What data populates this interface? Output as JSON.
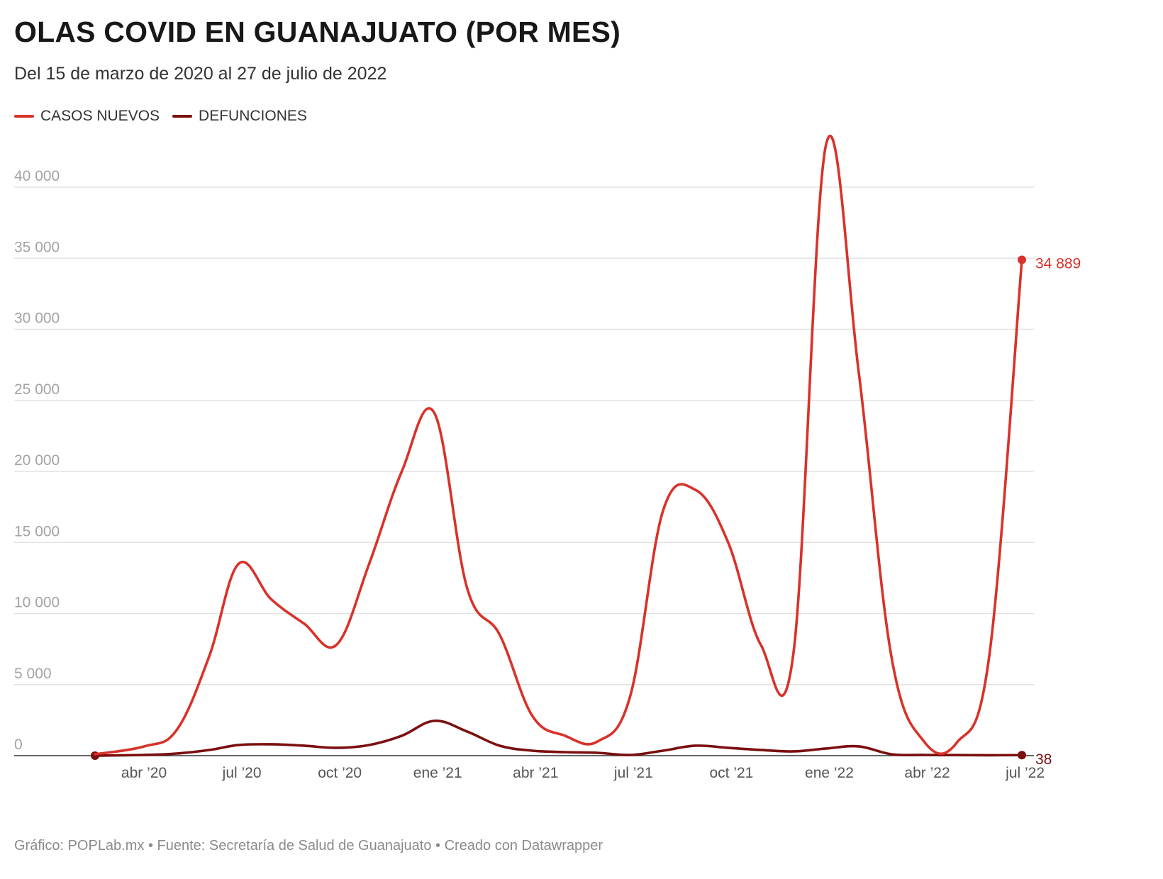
{
  "header": {
    "title": "OLAS COVID EN GUANAJUATO (POR MES)",
    "subtitle": "Del 15 de marzo de 2020 al 27 de julio de 2022"
  },
  "legend": {
    "items": [
      {
        "label": "CASOS NUEVOS",
        "color": "#d8322a"
      },
      {
        "label": "DEFUNCIONES",
        "color": "#7b0f0f"
      }
    ]
  },
  "footer": {
    "credit": "Gráfico: POPLab.mx • Fuente: Secretaría de Salud de Guanajuato • Creado con Datawrapper"
  },
  "chart_data": {
    "type": "line",
    "title": "OLAS COVID EN GUANAJUATO (POR MES)",
    "xlabel": "",
    "ylabel": "",
    "ylim": [
      0,
      40000
    ],
    "y_ticks": [
      {
        "value": 0,
        "label": "0"
      },
      {
        "value": 5000,
        "label": "5 000"
      },
      {
        "value": 10000,
        "label": "10 000"
      },
      {
        "value": 15000,
        "label": "15 000"
      },
      {
        "value": 20000,
        "label": "20 000"
      },
      {
        "value": 25000,
        "label": "25 000"
      },
      {
        "value": 30000,
        "label": "30 000"
      },
      {
        "value": 35000,
        "label": "35 000"
      },
      {
        "value": 40000,
        "label": "40 000"
      }
    ],
    "x_range": [
      2.5,
      30.9
    ],
    "x_ticks": [
      {
        "month_index": 4,
        "label": "abr ’20"
      },
      {
        "month_index": 7,
        "label": "jul ’20"
      },
      {
        "month_index": 10,
        "label": "oct ’20"
      },
      {
        "month_index": 13,
        "label": "ene ’21"
      },
      {
        "month_index": 16,
        "label": "abr ’21"
      },
      {
        "month_index": 19,
        "label": "jul ’21"
      },
      {
        "month_index": 22,
        "label": "oct ’21"
      },
      {
        "month_index": 25,
        "label": "ene ’22"
      },
      {
        "month_index": 28,
        "label": "abr ’22"
      },
      {
        "month_index": 31,
        "label": "jul ’22"
      }
    ],
    "x_index_note": "month_index counts months with 1 = enero 2020",
    "series": [
      {
        "name": "CASOS NUEVOS",
        "color": "#d8322a",
        "points": [
          {
            "x": 2.5,
            "y": 100
          },
          {
            "x": 4.0,
            "y": 650
          },
          {
            "x": 5.0,
            "y": 1800
          },
          {
            "x": 6.0,
            "y": 7000
          },
          {
            "x": 6.9,
            "y": 13500
          },
          {
            "x": 7.9,
            "y": 11000
          },
          {
            "x": 8.9,
            "y": 9300
          },
          {
            "x": 9.9,
            "y": 7800
          },
          {
            "x": 10.9,
            "y": 13500
          },
          {
            "x": 11.9,
            "y": 20000
          },
          {
            "x": 12.9,
            "y": 24100
          },
          {
            "x": 13.9,
            "y": 11800
          },
          {
            "x": 14.9,
            "y": 8500
          },
          {
            "x": 15.9,
            "y": 2800
          },
          {
            "x": 16.9,
            "y": 1400
          },
          {
            "x": 17.9,
            "y": 1000
          },
          {
            "x": 18.9,
            "y": 4200
          },
          {
            "x": 19.9,
            "y": 17200
          },
          {
            "x": 20.9,
            "y": 18700
          },
          {
            "x": 21.9,
            "y": 15000
          },
          {
            "x": 22.9,
            "y": 7800
          },
          {
            "x": 23.9,
            "y": 7200
          },
          {
            "x": 24.9,
            "y": 43000
          },
          {
            "x": 25.9,
            "y": 27000
          },
          {
            "x": 26.9,
            "y": 7000
          },
          {
            "x": 27.9,
            "y": 1000
          },
          {
            "x": 28.9,
            "y": 900
          },
          {
            "x": 29.9,
            "y": 7000
          },
          {
            "x": 30.9,
            "y": 34889
          }
        ],
        "end_label": "34 889"
      },
      {
        "name": "DEFUNCIONES",
        "color": "#7b0f0f",
        "points": [
          {
            "x": 2.5,
            "y": 0
          },
          {
            "x": 4.0,
            "y": 50
          },
          {
            "x": 5.0,
            "y": 150
          },
          {
            "x": 6.0,
            "y": 400
          },
          {
            "x": 6.9,
            "y": 750
          },
          {
            "x": 7.9,
            "y": 800
          },
          {
            "x": 8.9,
            "y": 700
          },
          {
            "x": 9.9,
            "y": 550
          },
          {
            "x": 10.9,
            "y": 750
          },
          {
            "x": 11.9,
            "y": 1400
          },
          {
            "x": 12.9,
            "y": 2450
          },
          {
            "x": 13.9,
            "y": 1700
          },
          {
            "x": 14.9,
            "y": 700
          },
          {
            "x": 15.9,
            "y": 350
          },
          {
            "x": 16.9,
            "y": 250
          },
          {
            "x": 17.9,
            "y": 200
          },
          {
            "x": 18.9,
            "y": 50
          },
          {
            "x": 19.9,
            "y": 350
          },
          {
            "x": 20.9,
            "y": 700
          },
          {
            "x": 21.9,
            "y": 550
          },
          {
            "x": 22.9,
            "y": 400
          },
          {
            "x": 23.9,
            "y": 300
          },
          {
            "x": 24.9,
            "y": 500
          },
          {
            "x": 25.9,
            "y": 650
          },
          {
            "x": 26.9,
            "y": 100
          },
          {
            "x": 27.9,
            "y": 50
          },
          {
            "x": 28.9,
            "y": 40
          },
          {
            "x": 29.9,
            "y": 30
          },
          {
            "x": 30.9,
            "y": 38
          }
        ],
        "end_label": "38"
      }
    ]
  }
}
